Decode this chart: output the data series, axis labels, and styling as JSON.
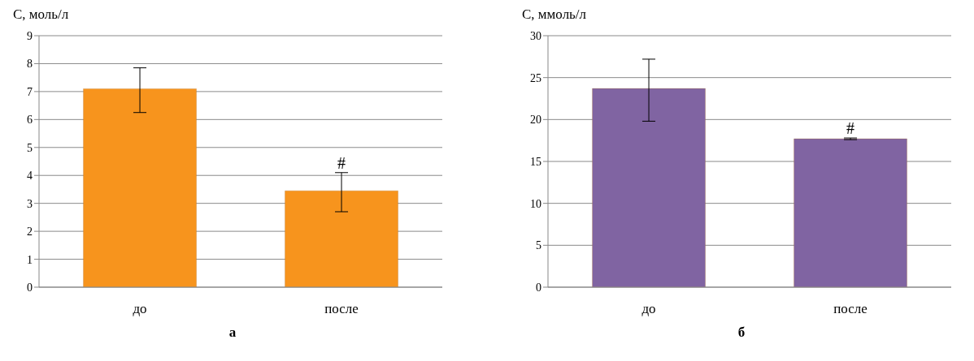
{
  "chart_data": [
    {
      "type": "bar",
      "ylabel": "С, моль/л",
      "categories": [
        "до",
        "после"
      ],
      "values": [
        7.1,
        3.45
      ],
      "errors": [
        [
          6.25,
          7.85
        ],
        [
          2.7,
          4.1
        ]
      ],
      "color": "#f7941d",
      "ylim": [
        0,
        9
      ],
      "yticks": [
        0,
        1,
        2,
        3,
        4,
        5,
        6,
        7,
        8,
        9
      ],
      "grid": "y",
      "annotations": [
        {
          "text": "#",
          "x": "после",
          "y": 4.1
        },
        "а"
      ]
    },
    {
      "type": "bar",
      "ylabel": "С, ммоль/л",
      "categories": [
        "до",
        "после"
      ],
      "values": [
        23.7,
        17.7
      ],
      "errors": [
        [
          19.8,
          27.2
        ],
        [
          17.6,
          17.8
        ]
      ],
      "color": "#8064a2",
      "ylim": [
        0,
        30
      ],
      "yticks": [
        0,
        5,
        10,
        15,
        20,
        25,
        30
      ],
      "grid": "y",
      "annotations": [
        {
          "text": "#",
          "x": "после",
          "y": 17.8
        },
        "б"
      ]
    }
  ]
}
